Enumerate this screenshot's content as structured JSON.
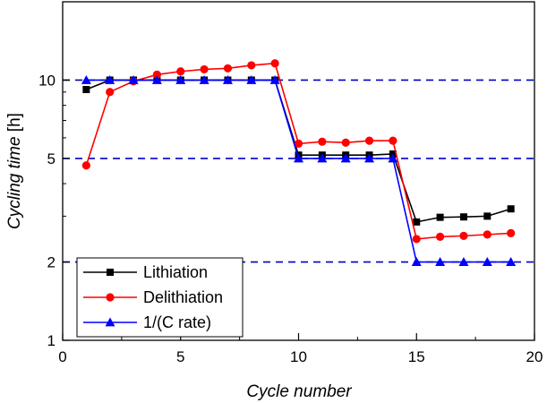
{
  "chart_data": {
    "type": "line",
    "title": "",
    "xlabel": "Cycle number",
    "ylabel_italic": "Cycling time",
    "ylabel_unit": " [h]",
    "x_scale": "linear",
    "y_scale": "log",
    "xlim": [
      0,
      20
    ],
    "ylim": [
      1,
      20
    ],
    "x_ticks": [
      0,
      5,
      10,
      15,
      20
    ],
    "y_ticks": [
      1,
      2,
      5,
      10
    ],
    "y_minor_ticks": [
      3,
      4,
      6,
      7,
      8,
      9
    ],
    "grid": false,
    "legend_position": "bottom-left",
    "reference_lines": {
      "values": [
        10,
        5,
        2
      ],
      "style": "dashed",
      "color": "#0000c8"
    },
    "series": [
      {
        "name": "Lithiation",
        "color": "#000000",
        "marker": "square",
        "x": [
          1,
          2,
          3,
          4,
          5,
          6,
          7,
          8,
          9,
          10,
          11,
          12,
          13,
          14,
          15,
          16,
          17,
          18,
          19
        ],
        "values": [
          9.2,
          10.0,
          10.0,
          10.0,
          10.0,
          10.0,
          10.0,
          10.0,
          10.0,
          5.15,
          5.15,
          5.15,
          5.15,
          5.2,
          2.85,
          2.97,
          2.98,
          3.0,
          3.2
        ]
      },
      {
        "name": "Delithiation",
        "color": "#ff0000",
        "marker": "circle",
        "x": [
          1,
          2,
          3,
          4,
          5,
          6,
          7,
          8,
          9,
          10,
          11,
          12,
          13,
          14,
          15,
          16,
          17,
          18,
          19
        ],
        "values": [
          4.7,
          9.0,
          9.9,
          10.5,
          10.8,
          11.0,
          11.1,
          11.4,
          11.6,
          5.7,
          5.8,
          5.75,
          5.85,
          5.85,
          2.45,
          2.5,
          2.52,
          2.55,
          2.58
        ]
      },
      {
        "name": "1/(C rate)",
        "color": "#0000ff",
        "marker": "triangle",
        "x": [
          1,
          2,
          3,
          4,
          5,
          6,
          7,
          8,
          9,
          10,
          11,
          12,
          13,
          14,
          15,
          16,
          17,
          18,
          19
        ],
        "values": [
          10,
          10,
          10,
          10,
          10,
          10,
          10,
          10,
          10,
          5,
          5,
          5,
          5,
          5,
          2,
          2,
          2,
          2,
          2
        ]
      }
    ]
  }
}
